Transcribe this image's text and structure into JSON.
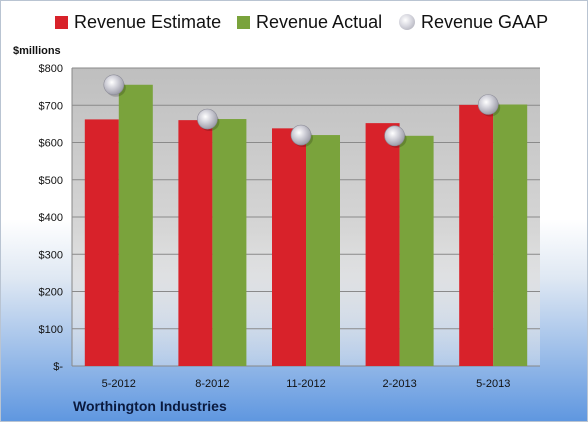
{
  "legend": {
    "estimate": "Revenue Estimate",
    "actual": "Revenue Actual",
    "gaap": "Revenue GAAP"
  },
  "unit_label": "$millions",
  "company": "Worthington Industries",
  "colors": {
    "estimate": "#d8222a",
    "actual": "#7aa33c",
    "gaap": "#b8b8c2"
  },
  "chart_data": {
    "type": "bar",
    "title": "",
    "xlabel": "",
    "ylabel": "$millions",
    "categories": [
      "5-2012",
      "8-2012",
      "11-2012",
      "2-2013",
      "5-2013"
    ],
    "ylim": [
      0,
      800
    ],
    "yticks": [
      0,
      100,
      200,
      300,
      400,
      500,
      600,
      700,
      800
    ],
    "ytick_labels": [
      "$-",
      "$100",
      "$200",
      "$300",
      "$400",
      "$500",
      "$600",
      "$700",
      "$800"
    ],
    "grid": true,
    "legend_position": "top",
    "series": [
      {
        "name": "Revenue Estimate",
        "type": "bar",
        "values": [
          662,
          660,
          638,
          652,
          701
        ]
      },
      {
        "name": "Revenue Actual",
        "type": "bar",
        "values": [
          755,
          663,
          620,
          618,
          702
        ]
      },
      {
        "name": "Revenue GAAP",
        "type": "marker",
        "values": [
          755,
          663,
          620,
          618,
          702
        ]
      }
    ]
  }
}
